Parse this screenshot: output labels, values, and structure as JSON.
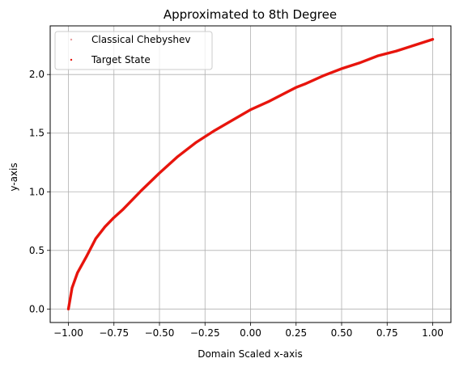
{
  "chart_data": {
    "type": "scatter",
    "title": "Approximated to 8th Degree",
    "xlabel": "Domain Scaled x-axis",
    "ylabel": "y-axis",
    "xlim": [
      -1.1,
      1.1
    ],
    "ylim": [
      -0.115,
      2.415
    ],
    "xticks": [
      -1.0,
      -0.75,
      -0.5,
      -0.25,
      0.0,
      0.25,
      0.5,
      0.75,
      1.0
    ],
    "xtick_labels": [
      "−1.00",
      "−0.75",
      "−0.50",
      "−0.25",
      "0.00",
      "0.25",
      "0.50",
      "0.75",
      "1.00"
    ],
    "yticks": [
      0.0,
      0.5,
      1.0,
      1.5,
      2.0
    ],
    "ytick_labels": [
      "0.0",
      "0.5",
      "1.0",
      "1.5",
      "2.0"
    ],
    "grid": true,
    "legend_position": "top-left",
    "x": [
      -1.0,
      -0.99,
      -0.98,
      -0.95,
      -0.9,
      -0.85,
      -0.8,
      -0.75,
      -0.7,
      -0.6,
      -0.5,
      -0.4,
      -0.3,
      -0.25,
      -0.2,
      -0.1,
      0.0,
      0.1,
      0.2,
      0.25,
      0.3,
      0.4,
      0.5,
      0.6,
      0.7,
      0.75,
      0.8,
      0.9,
      1.0
    ],
    "series": [
      {
        "name": "Classical Chebyshev",
        "color": "#e8a0a0",
        "y": [
          0.0,
          0.09,
          0.18,
          0.31,
          0.45,
          0.6,
          0.7,
          0.78,
          0.85,
          1.01,
          1.16,
          1.3,
          1.42,
          1.47,
          1.52,
          1.61,
          1.7,
          1.77,
          1.85,
          1.89,
          1.92,
          1.99,
          2.05,
          2.1,
          2.16,
          2.18,
          2.2,
          2.25,
          2.3
        ]
      },
      {
        "name": "Target State",
        "color": "#e8140c",
        "y": [
          0.0,
          0.09,
          0.18,
          0.31,
          0.45,
          0.6,
          0.7,
          0.78,
          0.85,
          1.01,
          1.16,
          1.3,
          1.42,
          1.47,
          1.52,
          1.61,
          1.7,
          1.77,
          1.85,
          1.89,
          1.92,
          1.99,
          2.05,
          2.1,
          2.16,
          2.18,
          2.2,
          2.25,
          2.3
        ]
      }
    ]
  }
}
